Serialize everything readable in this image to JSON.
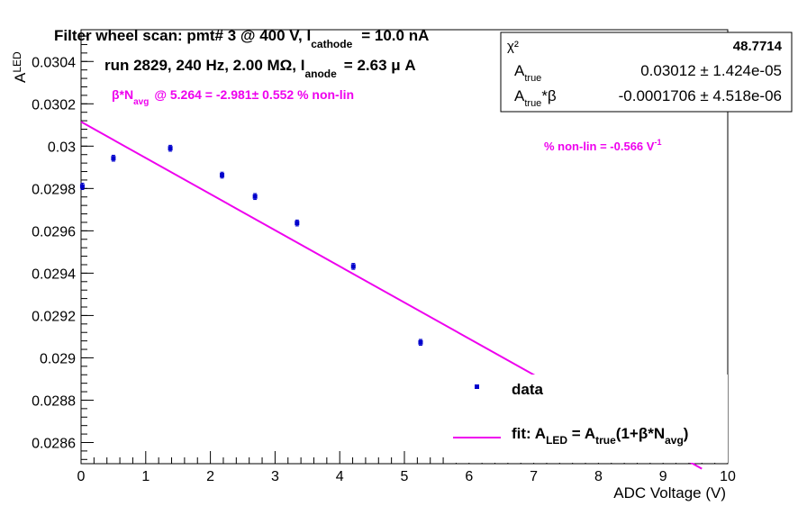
{
  "chart_data": {
    "type": "scatter",
    "title": {
      "main": "Filter wheel scan: pmt#   3 @   400 V, I",
      "sub": "cathode",
      "tail": "= 10.0 nA"
    },
    "run_info": {
      "main": "run 2829, 240 Hz, 2.00 MΩ, I",
      "sub": "anode",
      "tail": "= 2.63 μ A"
    },
    "beta_text": {
      "pre": "β*N",
      "sub": "avg",
      "tail": "@ 5.264 = -2.981± 0.552 % non-lin"
    },
    "nonlin_text": {
      "main": "% non-lin = -0.566 V",
      "sup": "-1"
    },
    "ylabel": {
      "main": "A",
      "sub": "LED"
    },
    "xlabel": "ADC Voltage (V)",
    "xlim": [
      0,
      10
    ],
    "ylim": [
      0.0285,
      0.03055
    ],
    "xticks": [
      "0",
      "1",
      "2",
      "3",
      "4",
      "5",
      "6",
      "7",
      "8",
      "9",
      "10"
    ],
    "yticks": [
      "0.0286",
      "0.0288",
      "0.029",
      "0.0292",
      "0.0294",
      "0.0296",
      "0.0298",
      "0.03",
      "0.0302",
      "0.0304"
    ],
    "colors": {
      "data": "#0000cc",
      "fit": "#ee00ee",
      "text_accent": "#ee00ee"
    },
    "series": [
      {
        "name": "data",
        "x": [
          0.02,
          0.5,
          1.38,
          2.18,
          2.69,
          3.34,
          4.21,
          5.25,
          6.15
        ],
        "y": [
          0.02981,
          0.029943,
          0.02999,
          0.029863,
          0.029762,
          0.029637,
          0.029432,
          0.029073,
          0.028875
        ],
        "err": [
          1.5e-05,
          1.4e-05,
          1.4e-05,
          1.4e-05,
          1.4e-05,
          1.4e-05,
          1.4e-05,
          1.4e-05,
          1.2e-05
        ]
      },
      {
        "name_parts": {
          "pre": "fit: A",
          "sub1": "LED",
          "mid1": " = A",
          "sub2": "true",
          "mid2": "(1+β*N",
          "sub3": "avg",
          "end": ")"
        },
        "x": [
          0,
          9.6
        ],
        "y": [
          0.030115,
          0.028476
        ]
      }
    ],
    "legend": {
      "placement": "bottom-right",
      "entries": [
        "data"
      ]
    },
    "stats": {
      "rows": [
        {
          "label": "χ²",
          "value": "48.7714"
        },
        {
          "label": "A_true",
          "label_main": "A",
          "label_sub": "true",
          "value": "0.03012 ± 1.424e-05"
        },
        {
          "label": "A_true*β",
          "label_main": "A",
          "label_sub": "true",
          "label_tail": "*β",
          "value": "-0.0001706 ± 4.518e-06"
        }
      ]
    }
  }
}
